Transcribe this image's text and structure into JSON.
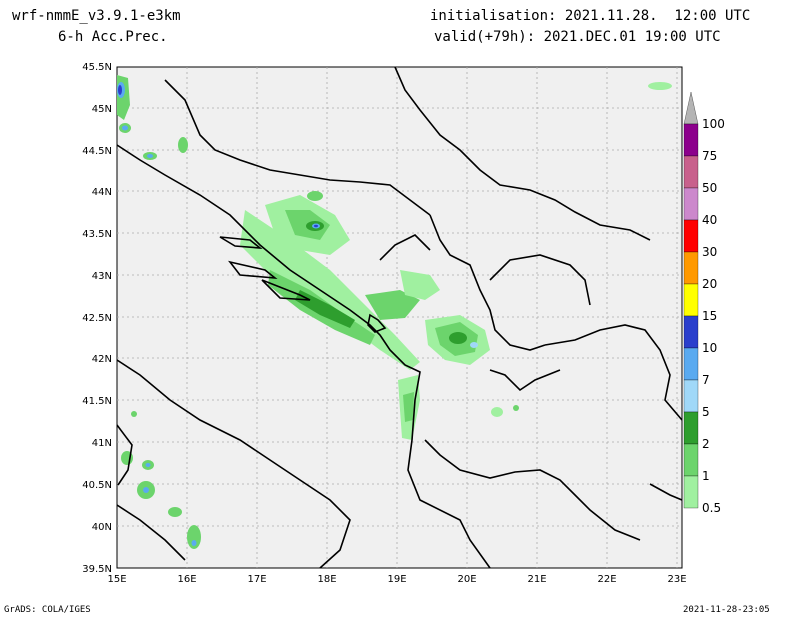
{
  "header": {
    "model": "wrf-nmmE_v3.9.1-e3km",
    "field": "6-h Acc.Prec.",
    "init": "initialisation: 2021.11.28.  12:00 UTC",
    "valid": "valid(+79h): 2021.DEC.01 19:00 UTC"
  },
  "footer": {
    "credit": "GrADS: COLA/IGES",
    "timestamp": "2021-11-28-23:05"
  },
  "axes": {
    "lon_labels": [
      "15E",
      "16E",
      "17E",
      "18E",
      "19E",
      "20E",
      "21E",
      "22E",
      "23E"
    ],
    "lat_labels": [
      "45.5N",
      "45N",
      "44.5N",
      "44N",
      "43.5N",
      "43N",
      "42.5N",
      "42N",
      "41.5N",
      "41N",
      "40.5N",
      "40N",
      "39.5N"
    ]
  },
  "colorbar": {
    "levels": [
      "0.5",
      "1",
      "2",
      "5",
      "7",
      "10",
      "15",
      "20",
      "30",
      "40",
      "50",
      "75",
      "100"
    ],
    "colors": [
      "#a0f0a0",
      "#6cd46c",
      "#2e9e2e",
      "#a0d8f8",
      "#5aaaf0",
      "#2a3fcc",
      "#ffff00",
      "#ff9900",
      "#ff0000",
      "#cc88cc",
      "#c8608c",
      "#8c008c",
      "#b4b4b4"
    ]
  },
  "colors": {
    "land": "#f0f0f0",
    "grid": "#aaaaaa",
    "coast": "#000000"
  }
}
